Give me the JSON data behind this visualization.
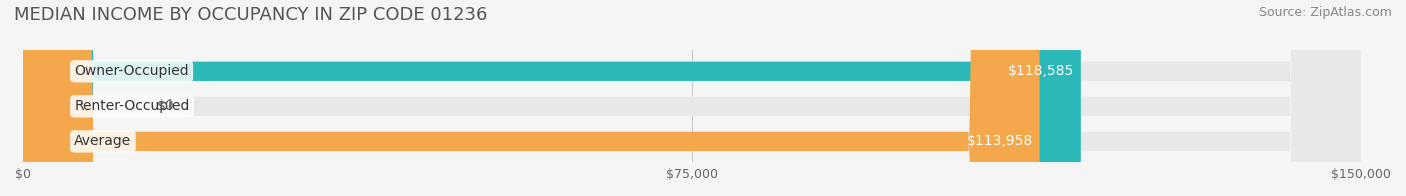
{
  "title": "MEDIAN INCOME BY OCCUPANCY IN ZIP CODE 01236",
  "source": "Source: ZipAtlas.com",
  "categories": [
    "Owner-Occupied",
    "Renter-Occupied",
    "Average"
  ],
  "values": [
    118585,
    0,
    113958
  ],
  "bar_colors": [
    "#2ab8b8",
    "#c9a8d4",
    "#f5a84b"
  ],
  "value_labels": [
    "$118,585",
    "$0",
    "$113,958"
  ],
  "x_ticks": [
    0,
    75000,
    150000
  ],
  "x_tick_labels": [
    "$0",
    "$75,000",
    "$150,000"
  ],
  "xlim": [
    0,
    150000
  ],
  "background_color": "#f5f5f5",
  "bar_bg_color": "#e8e8e8",
  "title_fontsize": 13,
  "source_fontsize": 9,
  "label_fontsize": 10,
  "tick_fontsize": 9
}
